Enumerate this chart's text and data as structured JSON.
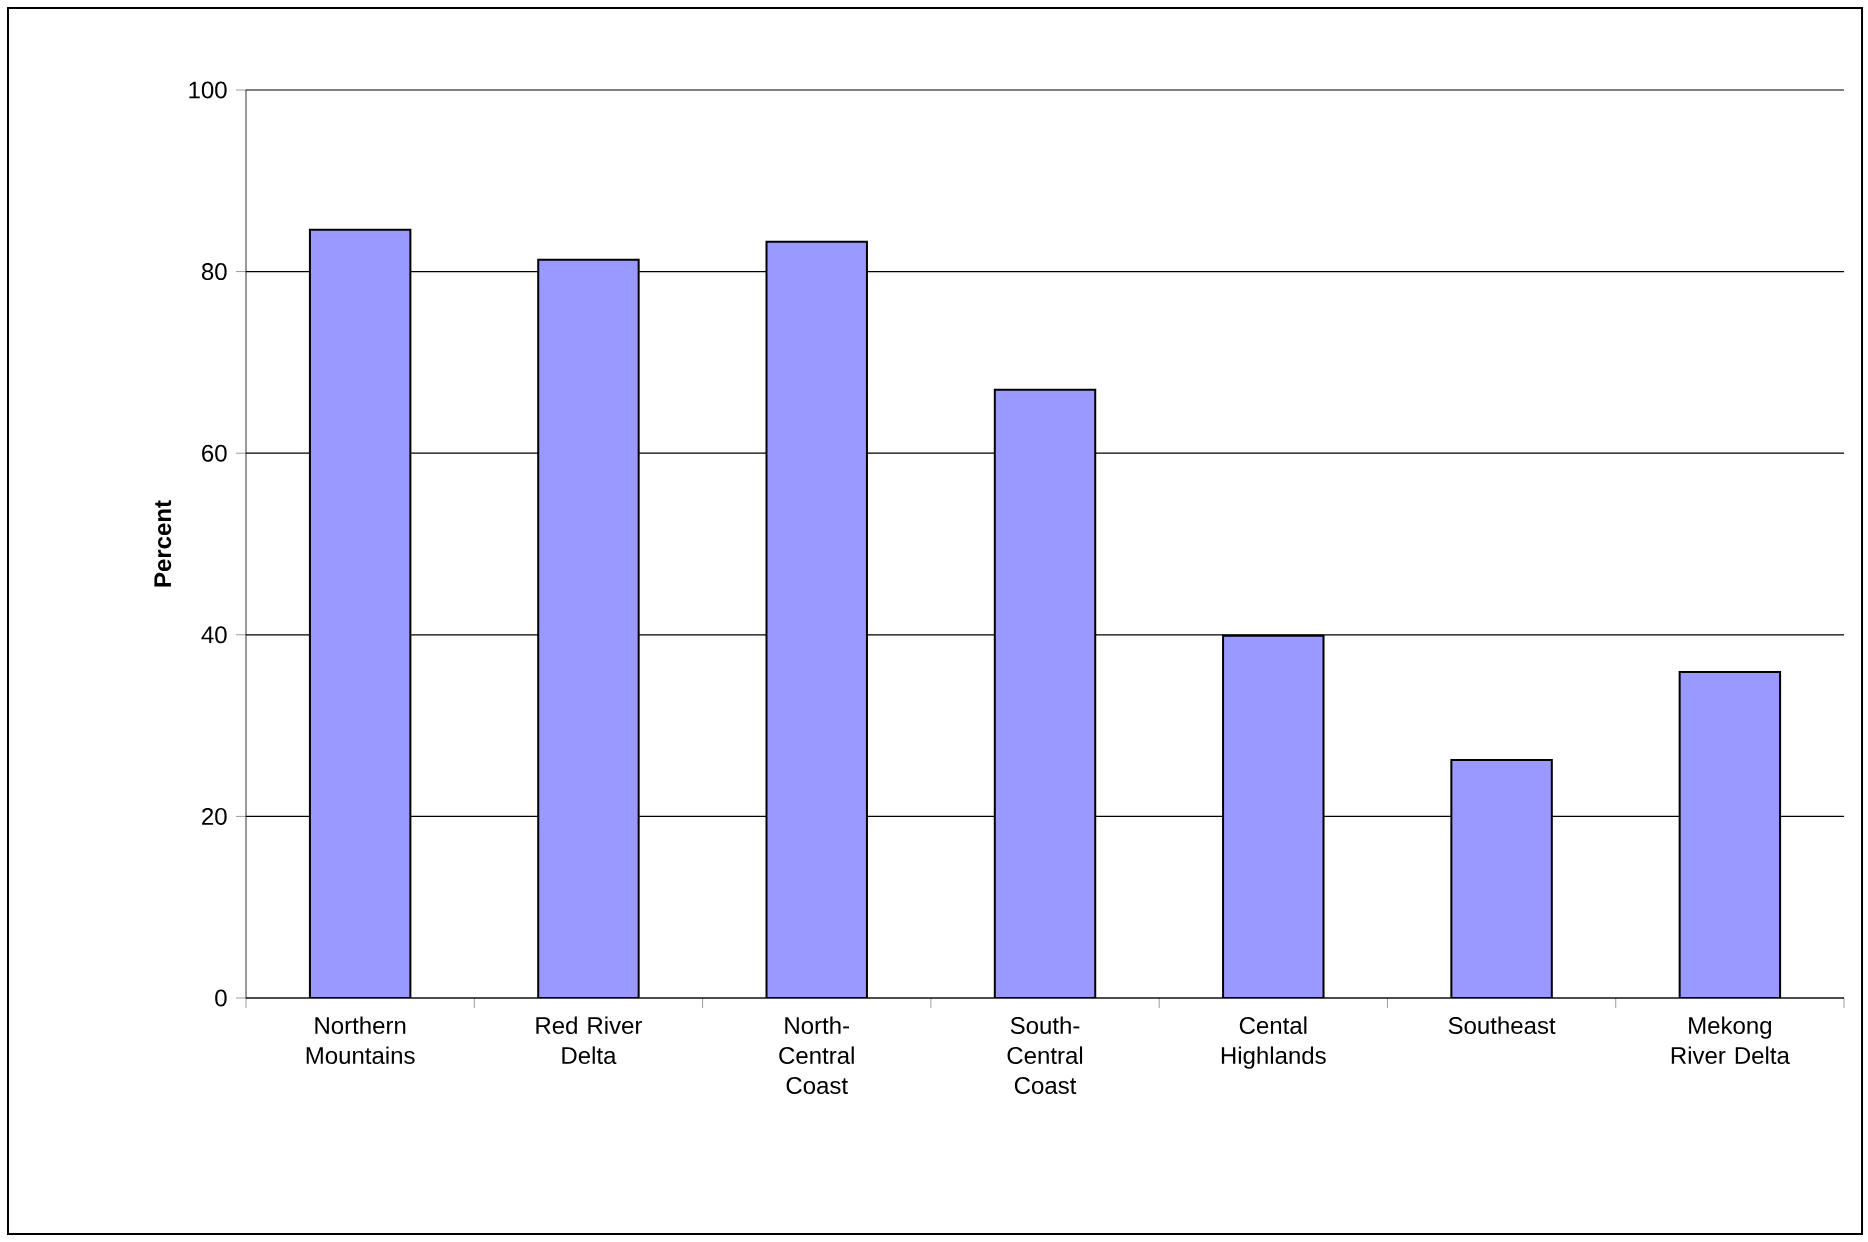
{
  "chart_data": {
    "type": "bar",
    "ylabel": "Percent",
    "categories": [
      "Northern Mountains",
      "Red River Delta",
      "North-Central Coast",
      "South-Central Coast",
      "Cental Highlands",
      "Southeast",
      "Mekong River Delta"
    ],
    "values": [
      84.6,
      81.3,
      83.3,
      67.0,
      39.9,
      26.2,
      35.9
    ],
    "color": "#9999ff",
    "ylim": [
      0,
      100
    ],
    "yticks": [
      0,
      20,
      40,
      60,
      80,
      100
    ],
    "grid": "y"
  }
}
